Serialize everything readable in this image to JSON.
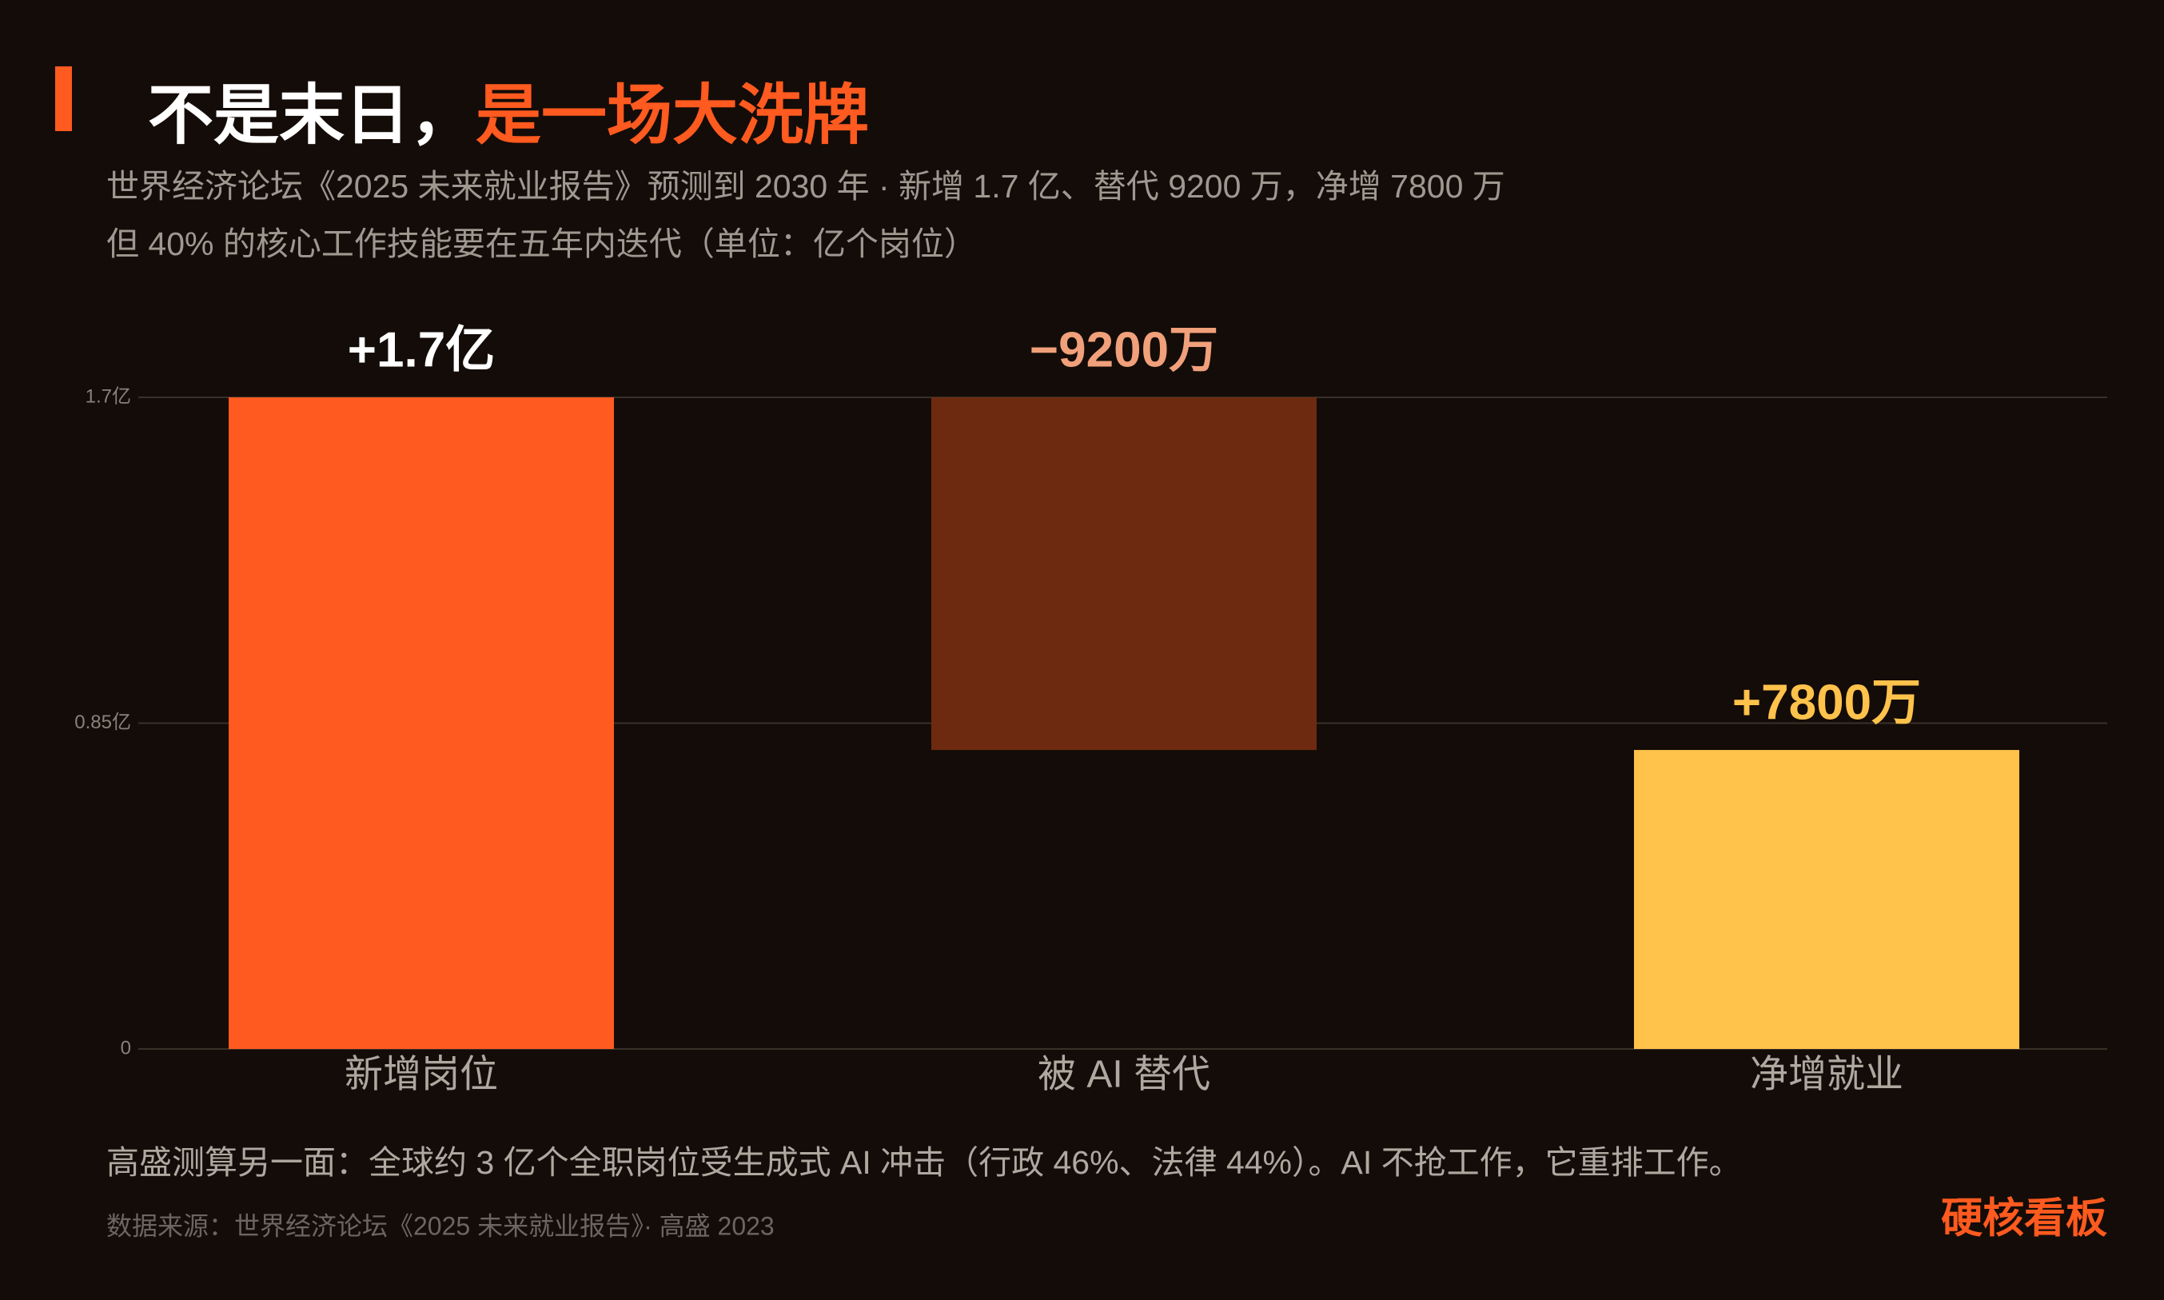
{
  "chart_data": {
    "type": "waterfall",
    "title": [
      "不是末日，",
      "是一场大洗牌"
    ],
    "subtitle": [
      "世界经济论坛《2025 未来就业报告》预测到 2030 年 · 新增 1.7 亿、替代 9200 万，净增 7800 万",
      "但 40% 的核心工作技能要在五年内迭代（单位：亿个岗位）"
    ],
    "categories": [
      "新增岗位",
      "被 AI 替代",
      "净增就业"
    ],
    "values": [
      1.7,
      -0.92,
      0.78
    ],
    "value_labels": [
      "+1.7亿",
      "−9200万",
      "+7800万"
    ],
    "measure": [
      "relative",
      "relative",
      "total"
    ],
    "colors": [
      "#ff5a1f",
      "#6e2a10",
      "#ffc24b"
    ],
    "label_colors": [
      "#ffffff",
      "#f0a07a",
      "#ffc24b"
    ],
    "ylim": [
      0,
      1.7
    ],
    "yticks": [
      0,
      {
        "value": 0.85,
        "label": "0.85亿"
      },
      {
        "value": 1.7,
        "label": "1.7亿"
      }
    ],
    "grid": true,
    "footnote": "高盛测算另一面：全球约 3 亿个全职岗位受生成式 AI 冲击（行政 46%、法律 44%）。AI 不抢工作，它重排工作。",
    "source": "数据来源：世界经济论坛《2025 未来就业报告》· 高盛 2023",
    "brand": "硬核看板"
  }
}
